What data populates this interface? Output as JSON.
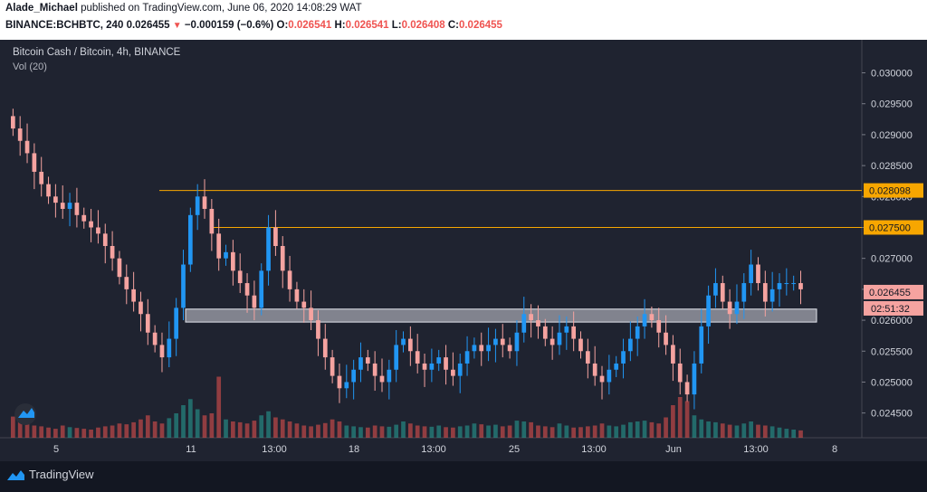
{
  "header": {
    "author": "Alade_Michael",
    "published_text": "published on TradingView.com, June 06, 2020 14:08:29 WAT",
    "symbol": "BINANCE:BCHBTC, 240",
    "last": "0.026455",
    "change_arrow": "▼",
    "change": "−0.000159 (−0.6%)",
    "o_label": "O:",
    "o": "0.026541",
    "h_label": "H:",
    "h": "0.026541",
    "l_label": "L:",
    "l": "0.026408",
    "c_label": "C:",
    "c": "0.026455"
  },
  "legend": {
    "title": "Bitcoin Cash / Bitcoin, 4h, BINANCE",
    "volume": "Vol (20)"
  },
  "footer": {
    "brand": "TradingView"
  },
  "colors": {
    "up": "#2196f3",
    "down": "#f5a3a0",
    "vol_up": "#26a69a",
    "vol_down": "#ef5350",
    "level": "#f7a600",
    "zone": "#d1d4dc"
  },
  "chart_data": {
    "type": "candlestick",
    "y_axis": {
      "ticks": [
        "0.030000",
        "0.029500",
        "0.029000",
        "0.028500",
        "0.028000",
        "0.027500",
        "0.027000",
        "0.026500",
        "0.026000",
        "0.025500",
        "0.025000",
        "0.024500"
      ],
      "range": [
        0.0241,
        0.0303
      ]
    },
    "x_axis": {
      "ticks": [
        "5",
        "11",
        "13:00",
        "18",
        "13:00",
        "25",
        "13:00",
        "Jun",
        "13:00",
        "8"
      ]
    },
    "horizontal_levels": [
      {
        "label": "0.028098",
        "value": 0.028098
      },
      {
        "label": "0.027500",
        "value": 0.0275
      }
    ],
    "zone": {
      "low": 0.02597,
      "high": 0.02618
    },
    "price_label": {
      "value": "0.026455",
      "countdown": "02:51:32"
    },
    "closes": [
      0.0291,
      0.0289,
      0.0287,
      0.0284,
      0.0282,
      0.028,
      0.0279,
      0.0278,
      0.0279,
      0.0277,
      0.0276,
      0.0275,
      0.0274,
      0.0272,
      0.027,
      0.0267,
      0.0265,
      0.0263,
      0.0261,
      0.0258,
      0.0256,
      0.0254,
      0.0257,
      0.0262,
      0.0269,
      0.0277,
      0.028,
      0.0278,
      0.0274,
      0.027,
      0.0271,
      0.0268,
      0.0266,
      0.0264,
      0.0262,
      0.0268,
      0.0275,
      0.0272,
      0.0268,
      0.0265,
      0.0263,
      0.0262,
      0.026,
      0.0257,
      0.0254,
      0.0251,
      0.0249,
      0.025,
      0.0252,
      0.0254,
      0.0253,
      0.0251,
      0.025,
      0.0252,
      0.0256,
      0.0257,
      0.0255,
      0.0253,
      0.0252,
      0.0253,
      0.0254,
      0.0252,
      0.0251,
      0.0253,
      0.0255,
      0.0256,
      0.0255,
      0.0256,
      0.0257,
      0.0256,
      0.0255,
      0.0258,
      0.0261,
      0.026,
      0.0259,
      0.0257,
      0.0256,
      0.0258,
      0.0259,
      0.0257,
      0.0255,
      0.0253,
      0.0251,
      0.025,
      0.0252,
      0.0253,
      0.0255,
      0.0257,
      0.0259,
      0.0261,
      0.026,
      0.0258,
      0.0256,
      0.0253,
      0.025,
      0.0248,
      0.0253,
      0.0259,
      0.0264,
      0.0266,
      0.0263,
      0.0261,
      0.0263,
      0.0266,
      0.0269,
      0.0266,
      0.0263,
      0.0265,
      0.0266,
      0.0266,
      0.0266,
      0.0265
    ],
    "volumes": [
      0.52,
      0.4,
      0.35,
      0.3,
      0.28,
      0.25,
      0.22,
      0.3,
      0.26,
      0.24,
      0.22,
      0.2,
      0.25,
      0.28,
      0.3,
      0.35,
      0.33,
      0.38,
      0.45,
      0.55,
      0.4,
      0.35,
      0.48,
      0.6,
      0.8,
      0.95,
      0.7,
      0.55,
      0.6,
      1.5,
      0.45,
      0.4,
      0.38,
      0.35,
      0.42,
      0.55,
      0.65,
      0.5,
      0.45,
      0.4,
      0.35,
      0.3,
      0.28,
      0.32,
      0.36,
      0.45,
      0.4,
      0.3,
      0.28,
      0.26,
      0.25,
      0.3,
      0.28,
      0.27,
      0.32,
      0.4,
      0.35,
      0.3,
      0.28,
      0.27,
      0.3,
      0.26,
      0.25,
      0.28,
      0.3,
      0.35,
      0.33,
      0.3,
      0.32,
      0.28,
      0.3,
      0.42,
      0.4,
      0.38,
      0.3,
      0.28,
      0.26,
      0.35,
      0.3,
      0.25,
      0.26,
      0.28,
      0.3,
      0.35,
      0.3,
      0.28,
      0.32,
      0.38,
      0.4,
      0.42,
      0.38,
      0.35,
      0.5,
      0.8,
      1.0,
      0.9,
      0.55,
      0.45,
      0.4,
      0.38,
      0.35,
      0.32,
      0.3,
      0.35,
      0.4,
      0.32,
      0.3,
      0.28,
      0.25,
      0.22,
      0.2,
      0.18
    ]
  }
}
